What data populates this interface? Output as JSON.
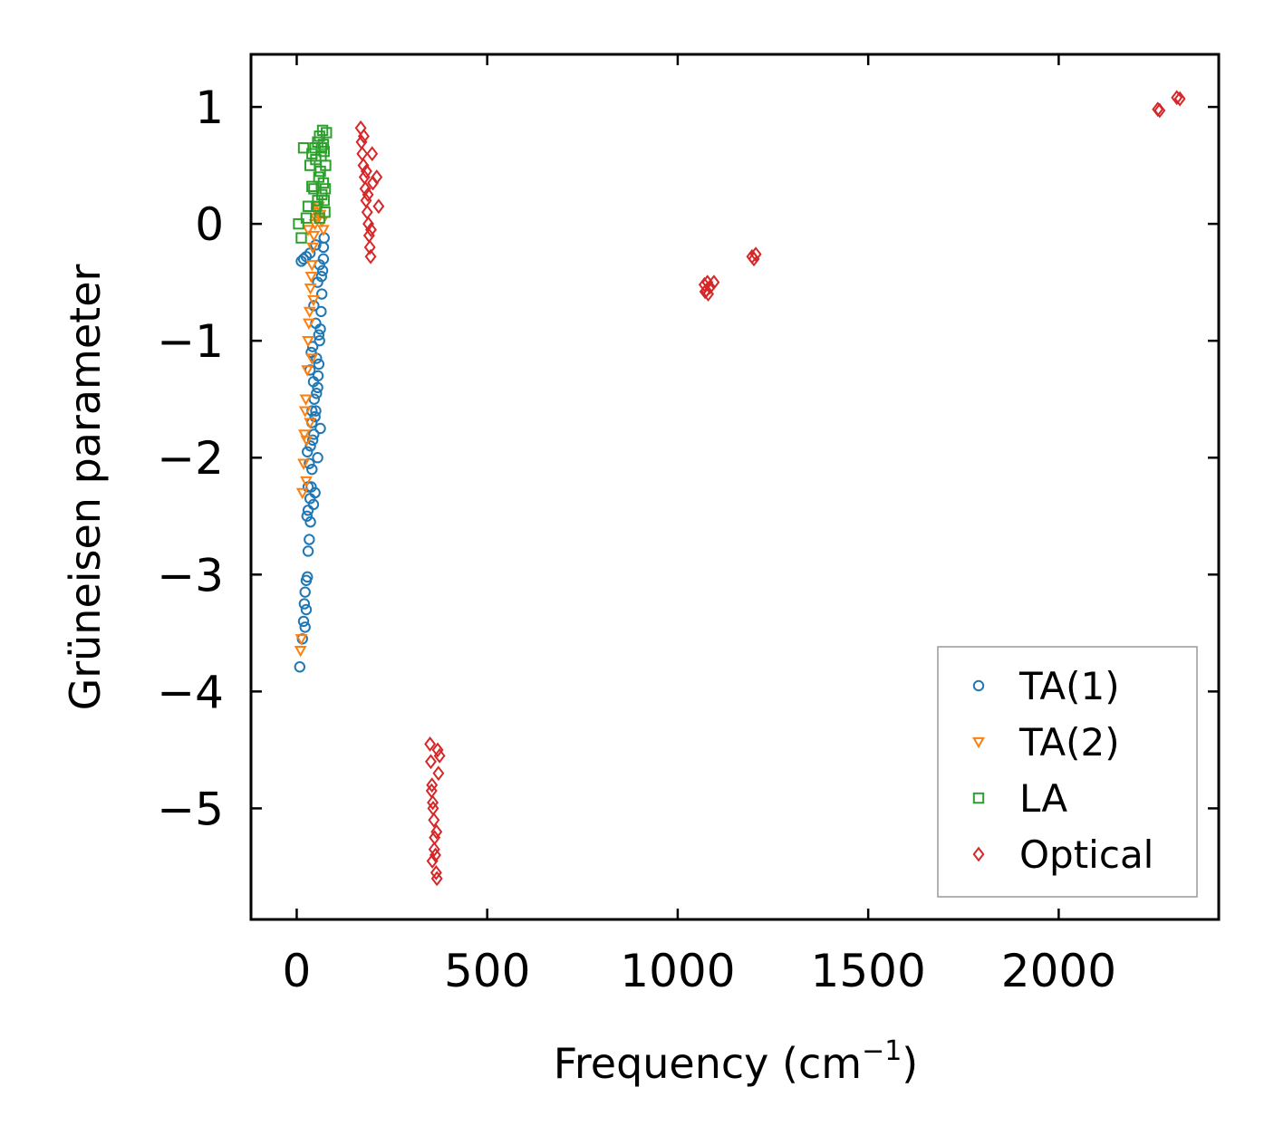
{
  "chart_data": {
    "type": "scatter",
    "title": "",
    "xlabel": "Frequency (cm",
    "xlabel_sup": "−1",
    "xlabel_close": ")",
    "ylabel": "Grüneisen parameter",
    "xlim": [
      -120,
      2420
    ],
    "ylim": [
      -5.95,
      1.45
    ],
    "xticks": [
      0,
      500,
      1000,
      1500,
      2000
    ],
    "xtick_labels": [
      "0",
      "500",
      "1000",
      "1500",
      "2000"
    ],
    "yticks": [
      1,
      0,
      -1,
      -2,
      -3,
      -4,
      -5
    ],
    "ytick_labels": [
      "1",
      "0",
      "−1",
      "−2",
      "−3",
      "−4",
      "−5"
    ],
    "grid": false,
    "legend_position": "bottom-right",
    "series": [
      {
        "name": "TA(1)",
        "marker": "circle",
        "color": "#1f77b4",
        "points": [
          [
            8,
            -3.79
          ],
          [
            15,
            -3.55
          ],
          [
            18,
            -3.4
          ],
          [
            20,
            -3.25
          ],
          [
            22,
            -3.15
          ],
          [
            25,
            -3.05
          ],
          [
            28,
            -3.02
          ],
          [
            30,
            -2.8
          ],
          [
            33,
            -2.7
          ],
          [
            27,
            -2.5
          ],
          [
            30,
            -2.45
          ],
          [
            35,
            -2.35
          ],
          [
            38,
            -2.25
          ],
          [
            40,
            -2.1
          ],
          [
            33,
            -2.05
          ],
          [
            28,
            -1.95
          ],
          [
            36,
            -1.9
          ],
          [
            42,
            -1.85
          ],
          [
            45,
            -1.8
          ],
          [
            40,
            -1.7
          ],
          [
            48,
            -1.65
          ],
          [
            50,
            -1.6
          ],
          [
            46,
            -1.5
          ],
          [
            52,
            -1.45
          ],
          [
            55,
            -1.4
          ],
          [
            44,
            -1.35
          ],
          [
            58,
            -1.2
          ],
          [
            38,
            -1.1
          ],
          [
            42,
            -1.05
          ],
          [
            60,
            -1.0
          ],
          [
            62,
            -0.9
          ],
          [
            50,
            -0.85
          ],
          [
            64,
            -0.75
          ],
          [
            45,
            -0.7
          ],
          [
            66,
            -0.6
          ],
          [
            55,
            -0.5
          ],
          [
            68,
            -0.4
          ],
          [
            60,
            -0.35
          ],
          [
            12,
            -0.32
          ],
          [
            18,
            -0.3
          ],
          [
            25,
            -0.28
          ],
          [
            35,
            -0.25
          ],
          [
            70,
            -0.2
          ],
          [
            72,
            -0.12
          ],
          [
            50,
            -0.18
          ],
          [
            40,
            -1.6
          ],
          [
            35,
            -1.25
          ],
          [
            30,
            -2.25
          ],
          [
            55,
            -2.0
          ],
          [
            48,
            -2.3
          ],
          [
            25,
            -3.3
          ],
          [
            22,
            -3.45
          ],
          [
            52,
            -1.15
          ],
          [
            65,
            -0.45
          ],
          [
            58,
            -0.95
          ],
          [
            44,
            -2.4
          ],
          [
            36,
            -2.55
          ],
          [
            62,
            -1.75
          ],
          [
            56,
            -1.3
          ],
          [
            70,
            -0.3
          ]
        ]
      },
      {
        "name": "TA(2)",
        "marker": "triangle-down",
        "color": "#ff7f0e",
        "points": [
          [
            10,
            -3.65
          ],
          [
            12,
            -3.55
          ],
          [
            15,
            -2.3
          ],
          [
            18,
            -2.05
          ],
          [
            20,
            -1.8
          ],
          [
            22,
            -1.6
          ],
          [
            24,
            -1.5
          ],
          [
            26,
            -1.85
          ],
          [
            28,
            -1.25
          ],
          [
            30,
            -1.0
          ],
          [
            32,
            -0.85
          ],
          [
            34,
            -0.75
          ],
          [
            36,
            -0.55
          ],
          [
            38,
            -0.45
          ],
          [
            40,
            -0.35
          ],
          [
            42,
            -0.2
          ],
          [
            45,
            -0.1
          ],
          [
            48,
            0.0
          ],
          [
            50,
            0.05
          ],
          [
            52,
            0.1
          ],
          [
            55,
            0.12
          ],
          [
            58,
            0.15
          ],
          [
            62,
            0.08
          ],
          [
            66,
            0.02
          ],
          [
            70,
            -0.05
          ],
          [
            44,
            -0.65
          ],
          [
            40,
            -1.15
          ],
          [
            35,
            -1.7
          ],
          [
            25,
            -2.2
          ],
          [
            30,
            -0.05
          ]
        ]
      },
      {
        "name": "LA",
        "marker": "square",
        "color": "#2ca02c",
        "points": [
          [
            5,
            0.0
          ],
          [
            12,
            -0.12
          ],
          [
            18,
            0.65
          ],
          [
            25,
            0.05
          ],
          [
            30,
            0.15
          ],
          [
            35,
            0.5
          ],
          [
            40,
            0.6
          ],
          [
            45,
            0.3
          ],
          [
            50,
            0.55
          ],
          [
            55,
            0.7
          ],
          [
            60,
            0.75
          ],
          [
            62,
            0.45
          ],
          [
            65,
            0.65
          ],
          [
            68,
            0.8
          ],
          [
            70,
            0.35
          ],
          [
            72,
            0.2
          ],
          [
            74,
            0.1
          ],
          [
            76,
            0.5
          ],
          [
            78,
            0.78
          ],
          [
            66,
            0.25
          ],
          [
            58,
            0.4
          ],
          [
            52,
            0.15
          ],
          [
            48,
            0.65
          ],
          [
            64,
            0.58
          ],
          [
            70,
            0.68
          ],
          [
            75,
            0.3
          ],
          [
            60,
            0.05
          ],
          [
            55,
            0.2
          ],
          [
            72,
            0.62
          ],
          [
            40,
            0.32
          ]
        ]
      },
      {
        "name": "Optical",
        "marker": "diamond",
        "color": "#d62728",
        "points": [
          [
            168,
            0.82
          ],
          [
            170,
            0.7
          ],
          [
            172,
            0.6
          ],
          [
            175,
            0.5
          ],
          [
            178,
            0.4
          ],
          [
            180,
            0.3
          ],
          [
            182,
            0.2
          ],
          [
            185,
            0.1
          ],
          [
            188,
            0.0
          ],
          [
            190,
            -0.1
          ],
          [
            192,
            -0.2
          ],
          [
            194,
            -0.28
          ],
          [
            176,
            0.75
          ],
          [
            183,
            0.45
          ],
          [
            187,
            0.25
          ],
          [
            195,
            -0.05
          ],
          [
            200,
            0.35
          ],
          [
            210,
            0.4
          ],
          [
            215,
            0.15
          ],
          [
            198,
            0.6
          ],
          [
            350,
            -4.45
          ],
          [
            352,
            -4.6
          ],
          [
            355,
            -4.8
          ],
          [
            357,
            -4.95
          ],
          [
            360,
            -5.1
          ],
          [
            362,
            -5.25
          ],
          [
            364,
            -5.4
          ],
          [
            366,
            -5.55
          ],
          [
            368,
            -5.6
          ],
          [
            370,
            -4.5
          ],
          [
            372,
            -4.7
          ],
          [
            358,
            -5.0
          ],
          [
            354,
            -4.85
          ],
          [
            361,
            -5.35
          ],
          [
            367,
            -5.2
          ],
          [
            375,
            -4.55
          ],
          [
            356,
            -5.45
          ],
          [
            1070,
            -0.52
          ],
          [
            1075,
            -0.57
          ],
          [
            1080,
            -0.6
          ],
          [
            1078,
            -0.5
          ],
          [
            1085,
            -0.54
          ],
          [
            1095,
            -0.5
          ],
          [
            1072,
            -0.58
          ],
          [
            1195,
            -0.28
          ],
          [
            1200,
            -0.3
          ],
          [
            1205,
            -0.26
          ],
          [
            2260,
            0.98
          ],
          [
            2265,
            0.97
          ],
          [
            2310,
            1.08
          ],
          [
            2318,
            1.07
          ]
        ]
      }
    ]
  }
}
